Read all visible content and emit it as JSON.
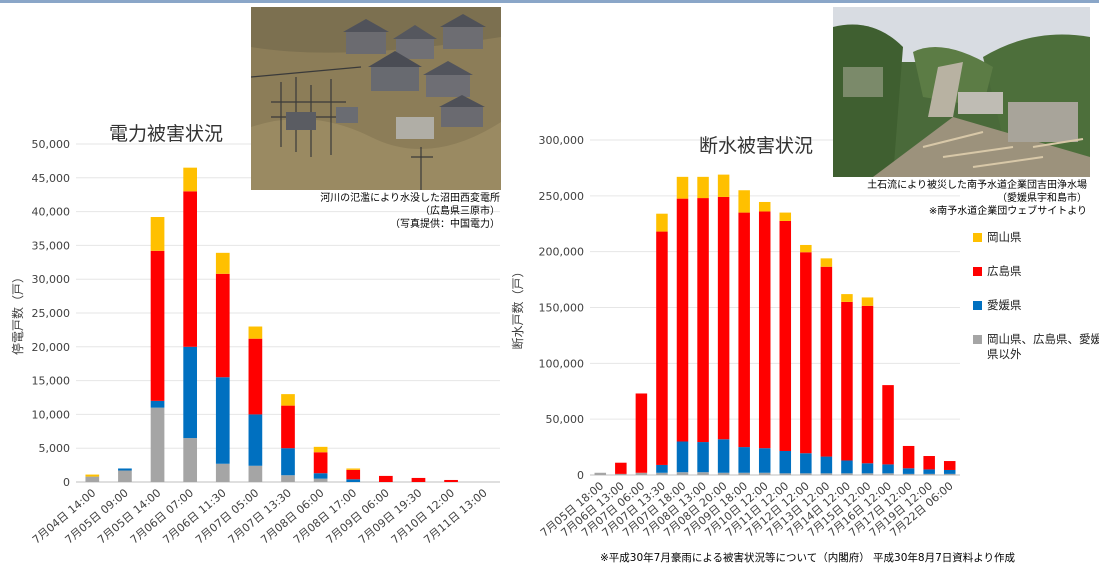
{
  "colors": {
    "okayama": "#ffc000",
    "hiroshima": "#ff0000",
    "ehime": "#0070c0",
    "other": "#a5a5a5"
  },
  "left_photo": {
    "caption_lines": [
      "河川の氾濫により水没した沼田西変電所",
      "（広島県三原市）",
      "（写真提供：中国電力）"
    ]
  },
  "right_photo": {
    "caption_lines": [
      "土石流により被災した南予水道企業団吉田浄水場",
      "（愛媛県宇和島市）",
      "※南予水道企業団ウェブサイトより"
    ]
  },
  "footnote": "※平成30年7月豪雨による被害状況等について（内閣府） 平成30年8月7日資料より作成",
  "chart_data": [
    {
      "type": "bar",
      "stacked": true,
      "title": "電力被害状況",
      "ylabel": "停電戸数（戸）",
      "ylim": [
        0,
        50000
      ],
      "yticks": [
        "0",
        "5,000",
        "10,000",
        "15,000",
        "20,000",
        "25,000",
        "30,000",
        "35,000",
        "40,000",
        "45,000",
        "50,000"
      ],
      "categories": [
        "7月04日 14:00",
        "7月05日 09:00",
        "7月05日 14:00",
        "7月06日 07:00",
        "7月06日 11:30",
        "7月07日 05:00",
        "7月07日 13:30",
        "7月08日 06:00",
        "7月08日 17:00",
        "7月09日 06:00",
        "7月09日 19:30",
        "7月10日 12:00",
        "7月11日 13:00"
      ],
      "series": [
        {
          "name": "岡山県、広島県、愛媛県以外",
          "values": [
            800,
            1700,
            11000,
            6500,
            2700,
            2400,
            1000,
            500,
            0,
            0,
            0,
            0,
            0
          ]
        },
        {
          "name": "愛媛県",
          "values": [
            0,
            300,
            1000,
            13500,
            12800,
            7600,
            4000,
            800,
            400,
            0,
            0,
            0,
            0
          ]
        },
        {
          "name": "広島県",
          "values": [
            0,
            0,
            22200,
            23000,
            15300,
            11200,
            6300,
            3100,
            1400,
            900,
            600,
            300,
            0
          ]
        },
        {
          "name": "岡山県",
          "values": [
            300,
            0,
            5000,
            3500,
            3100,
            1800,
            1700,
            800,
            200,
            0,
            0,
            0,
            0
          ]
        }
      ]
    },
    {
      "type": "bar",
      "stacked": true,
      "title": "断水被害状況",
      "ylabel": "断水戸数（戸）",
      "ylim": [
        0,
        300000
      ],
      "yticks": [
        "0",
        "50,000",
        "100,000",
        "150,000",
        "200,000",
        "250,000",
        "300,000"
      ],
      "legend": {
        "position": "right",
        "items": [
          "岡山県",
          "広島県",
          "愛媛県",
          "岡山県、広島県、愛媛県以外"
        ]
      },
      "categories": [
        "7月05日 18:00",
        "7月06日 13:00",
        "7月07日 06:00",
        "7月07日 13:30",
        "7月07日 18:00",
        "7月08日 13:00",
        "7月08日 20:00",
        "7月09日 18:00",
        "7月10日 12:00",
        "7月11日 12:00",
        "7月12日 12:00",
        "7月13日 12:00",
        "7月14日 12:00",
        "7月15日 12:00",
        "7月16日 12:00",
        "7月17日 12:00",
        "7月19日 12:00",
        "7月22日 06:00"
      ],
      "series": [
        {
          "name": "岡山県、広島県、愛媛県以外",
          "values": [
            2000,
            1000,
            2000,
            2000,
            2500,
            2500,
            2000,
            2000,
            2000,
            1500,
            1500,
            1500,
            1500,
            1500,
            1500,
            1000,
            1000,
            1000
          ]
        },
        {
          "name": "愛媛県",
          "values": [
            0,
            0,
            0,
            7000,
            27500,
            27000,
            30000,
            23000,
            22000,
            20000,
            18000,
            15000,
            11500,
            9000,
            8000,
            5000,
            4000,
            3500
          ]
        },
        {
          "name": "広島県",
          "values": [
            0,
            10000,
            71000,
            209000,
            217500,
            218500,
            217000,
            210000,
            212000,
            206000,
            180000,
            170000,
            142000,
            141000,
            71000,
            20000,
            12000,
            8000
          ]
        },
        {
          "name": "岡山県",
          "values": [
            0,
            0,
            0,
            16000,
            19500,
            19000,
            20000,
            20000,
            8500,
            7500,
            6500,
            7500,
            7000,
            7500,
            0,
            0,
            0,
            0
          ]
        }
      ]
    }
  ]
}
